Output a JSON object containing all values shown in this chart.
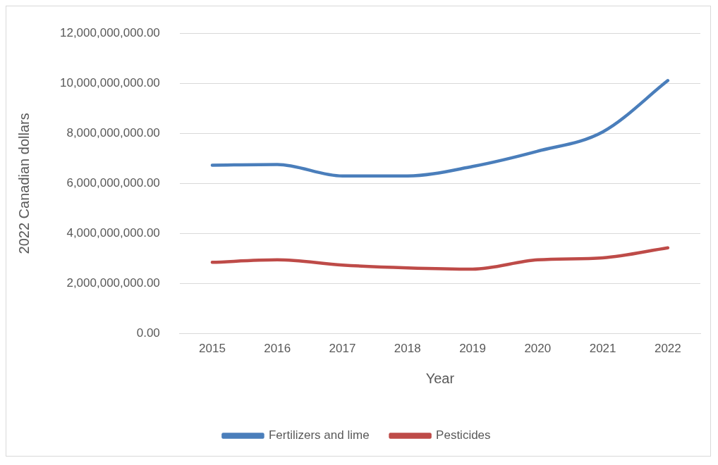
{
  "chart_data": {
    "type": "line",
    "xlabel": "Year",
    "ylabel": "2022 Canadian dollars",
    "categories": [
      "2015",
      "2016",
      "2017",
      "2018",
      "2019",
      "2020",
      "2021",
      "2022"
    ],
    "series": [
      {
        "name": "Fertilizers and lime",
        "color": "#4a7ebb",
        "values": [
          6730000000,
          6760000000,
          6300000000,
          6300000000,
          6680000000,
          7290000000,
          8060000000,
          10110000000
        ]
      },
      {
        "name": "Pesticides",
        "color": "#be4b48",
        "values": [
          2850000000,
          2950000000,
          2740000000,
          2630000000,
          2580000000,
          2950000000,
          3030000000,
          3430000000
        ]
      }
    ],
    "ylim": [
      0,
      12000000000
    ],
    "yticks": [
      {
        "value": 0,
        "label": "0.00"
      },
      {
        "value": 2000000000,
        "label": "2,000,000,000.00"
      },
      {
        "value": 4000000000,
        "label": "4,000,000,000.00"
      },
      {
        "value": 6000000000,
        "label": "6,000,000,000.00"
      },
      {
        "value": 8000000000,
        "label": "8,000,000,000.00"
      },
      {
        "value": 10000000000,
        "label": "10,000,000,000.00"
      },
      {
        "value": 12000000000,
        "label": "12,000,000,000.00"
      }
    ],
    "grid": "y",
    "legend": "bottom",
    "marker": "none",
    "line_style": "solid"
  }
}
